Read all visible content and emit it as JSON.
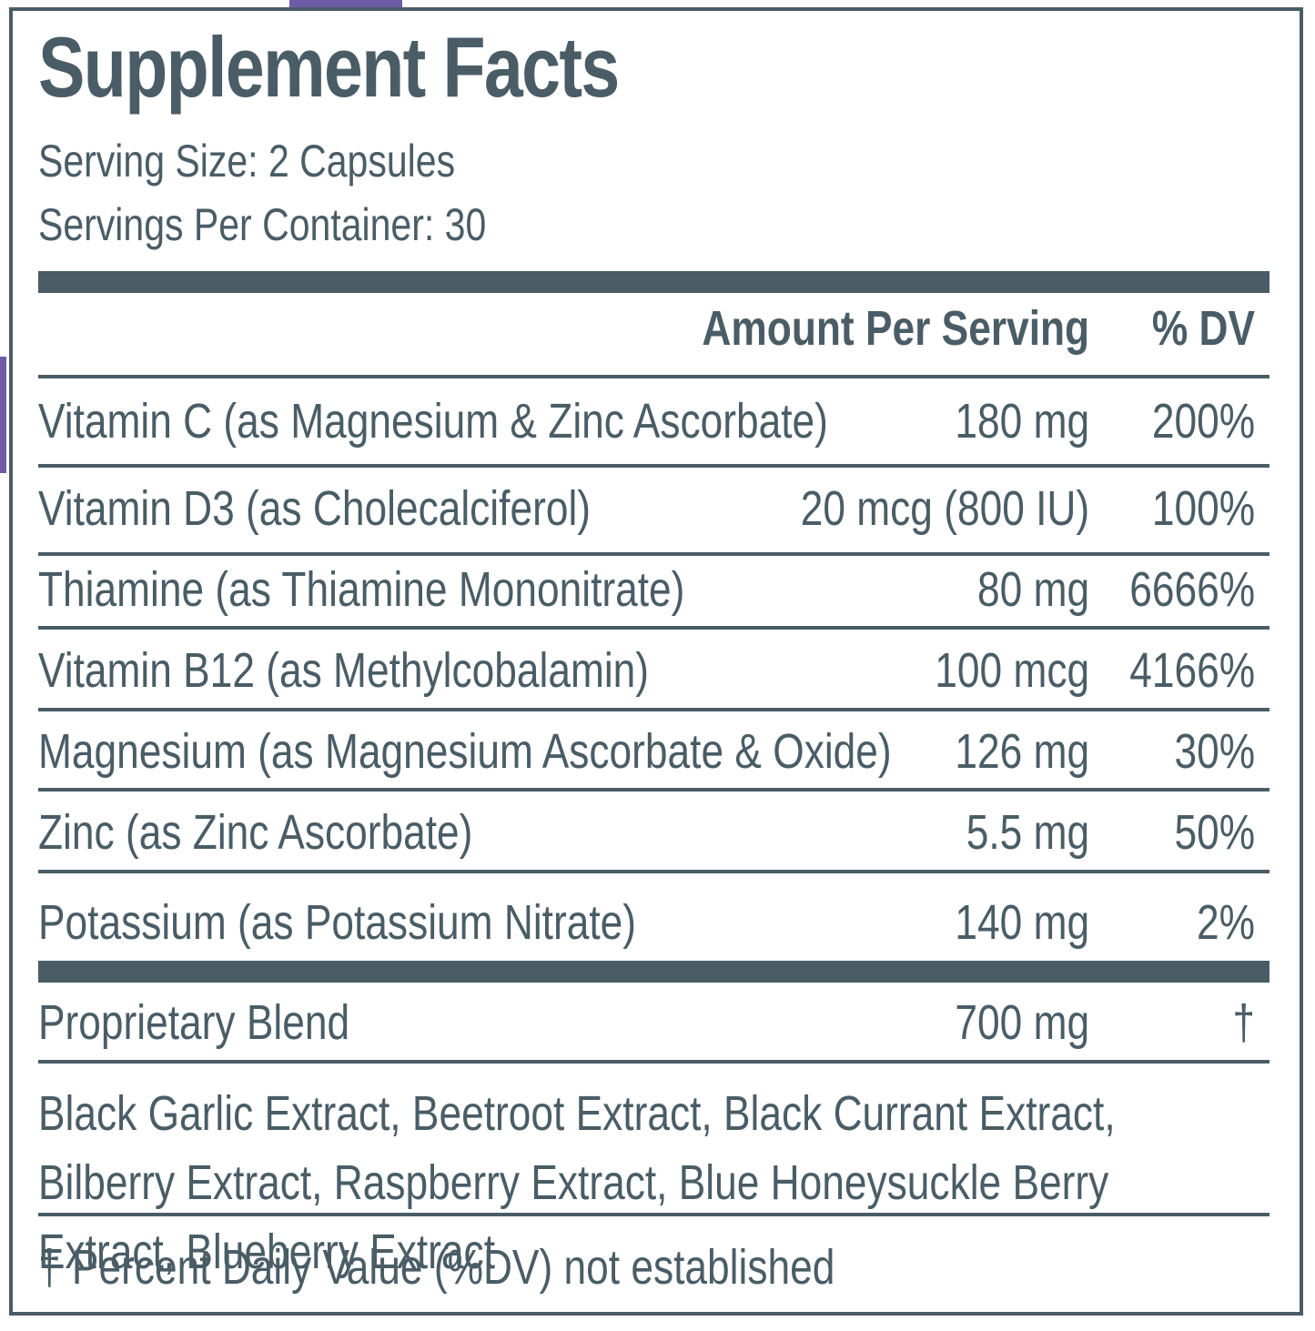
{
  "label": {
    "title": "Supplement Facts",
    "serving_size": "Serving Size: 2 Capsules",
    "servings_per_container": "Servings Per Container: 30",
    "header": {
      "amount": "Amount Per Serving",
      "dv": "% DV"
    },
    "nutrients": [
      {
        "name": "Vitamin C (as Magnesium & Zinc Ascorbate)",
        "amount": "180 mg",
        "dv": "200%"
      },
      {
        "name": "Vitamin D3 (as Cholecalciferol)",
        "amount": "20 mcg (800 IU)",
        "dv": "100%"
      },
      {
        "name": "Thiamine (as Thiamine Mononitrate)",
        "amount": "80 mg",
        "dv": "6666%"
      },
      {
        "name": "Vitamin B12 (as Methylcobalamin)",
        "amount": "100 mcg",
        "dv": "4166%"
      },
      {
        "name": "Magnesium (as Magnesium Ascorbate & Oxide)",
        "amount": "126 mg",
        "dv": "30%"
      },
      {
        "name": "Zinc (as Zinc Ascorbate)",
        "amount": "5.5 mg",
        "dv": "50%"
      },
      {
        "name": "Potassium (as Potassium Nitrate)",
        "amount": "140 mg",
        "dv": "2%"
      }
    ],
    "blend": {
      "name": "Proprietary Blend",
      "amount": "700 mg",
      "dv": "†",
      "ingredients": "Black Garlic Extract, Beetroot Extract, Black Currant Extract, Bilberry Extract, Raspberry Extract, Blue Honeysuckle Berry Extract, Blueberry Extract"
    },
    "footnote": "† Percent Daily Value (%DV) not established"
  },
  "colors": {
    "ink": "#4a5d66",
    "accent": "#6e5ba8"
  }
}
